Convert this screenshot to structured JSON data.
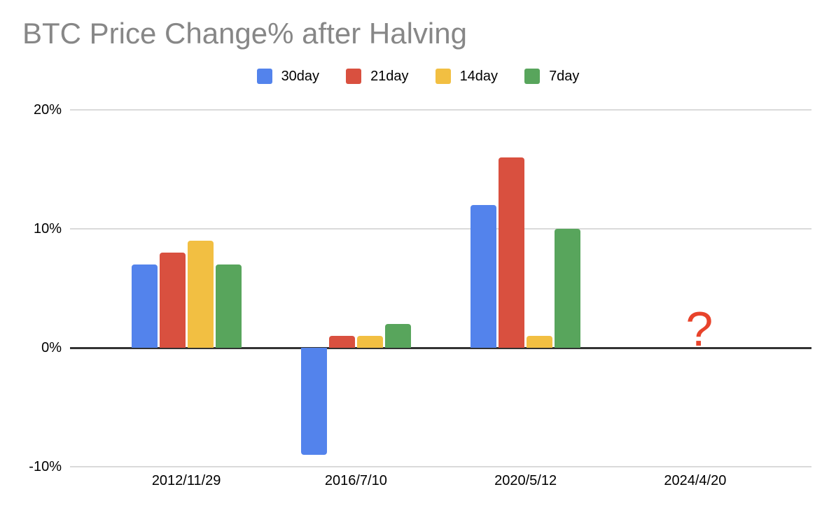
{
  "chart_data": {
    "type": "bar",
    "title": "BTC Price Change% after Halving",
    "title_color": "#878787",
    "background": "#FFFFFF",
    "categories": [
      "2012/11/29",
      "2016/7/10",
      "2020/5/12",
      "2024/4/20"
    ],
    "series": [
      {
        "name": "30day",
        "color": "#5383EC",
        "values": [
          7,
          -9,
          12,
          null
        ]
      },
      {
        "name": "21day",
        "color": "#D9503F",
        "values": [
          8,
          1,
          16,
          null
        ]
      },
      {
        "name": "14day",
        "color": "#F2BF42",
        "values": [
          9,
          1,
          1,
          null
        ]
      },
      {
        "name": "7day",
        "color": "#58A55C",
        "values": [
          7,
          2,
          10,
          null
        ]
      }
    ],
    "annotation": {
      "text": "?",
      "category_index": 3,
      "color": "#E8432B"
    },
    "y_axis": {
      "min": -10,
      "max": 20,
      "tick_values": [
        20,
        10,
        0,
        -10
      ],
      "tick_labels": [
        "20%",
        "10%",
        "0%",
        "-10%"
      ],
      "unit": "%"
    },
    "xlabel": "",
    "ylabel": "",
    "legend_position": "top",
    "grid": true,
    "gridline_color": "#DADADA",
    "zero_line_color": "#333333",
    "axis_text_color": "#000000"
  }
}
